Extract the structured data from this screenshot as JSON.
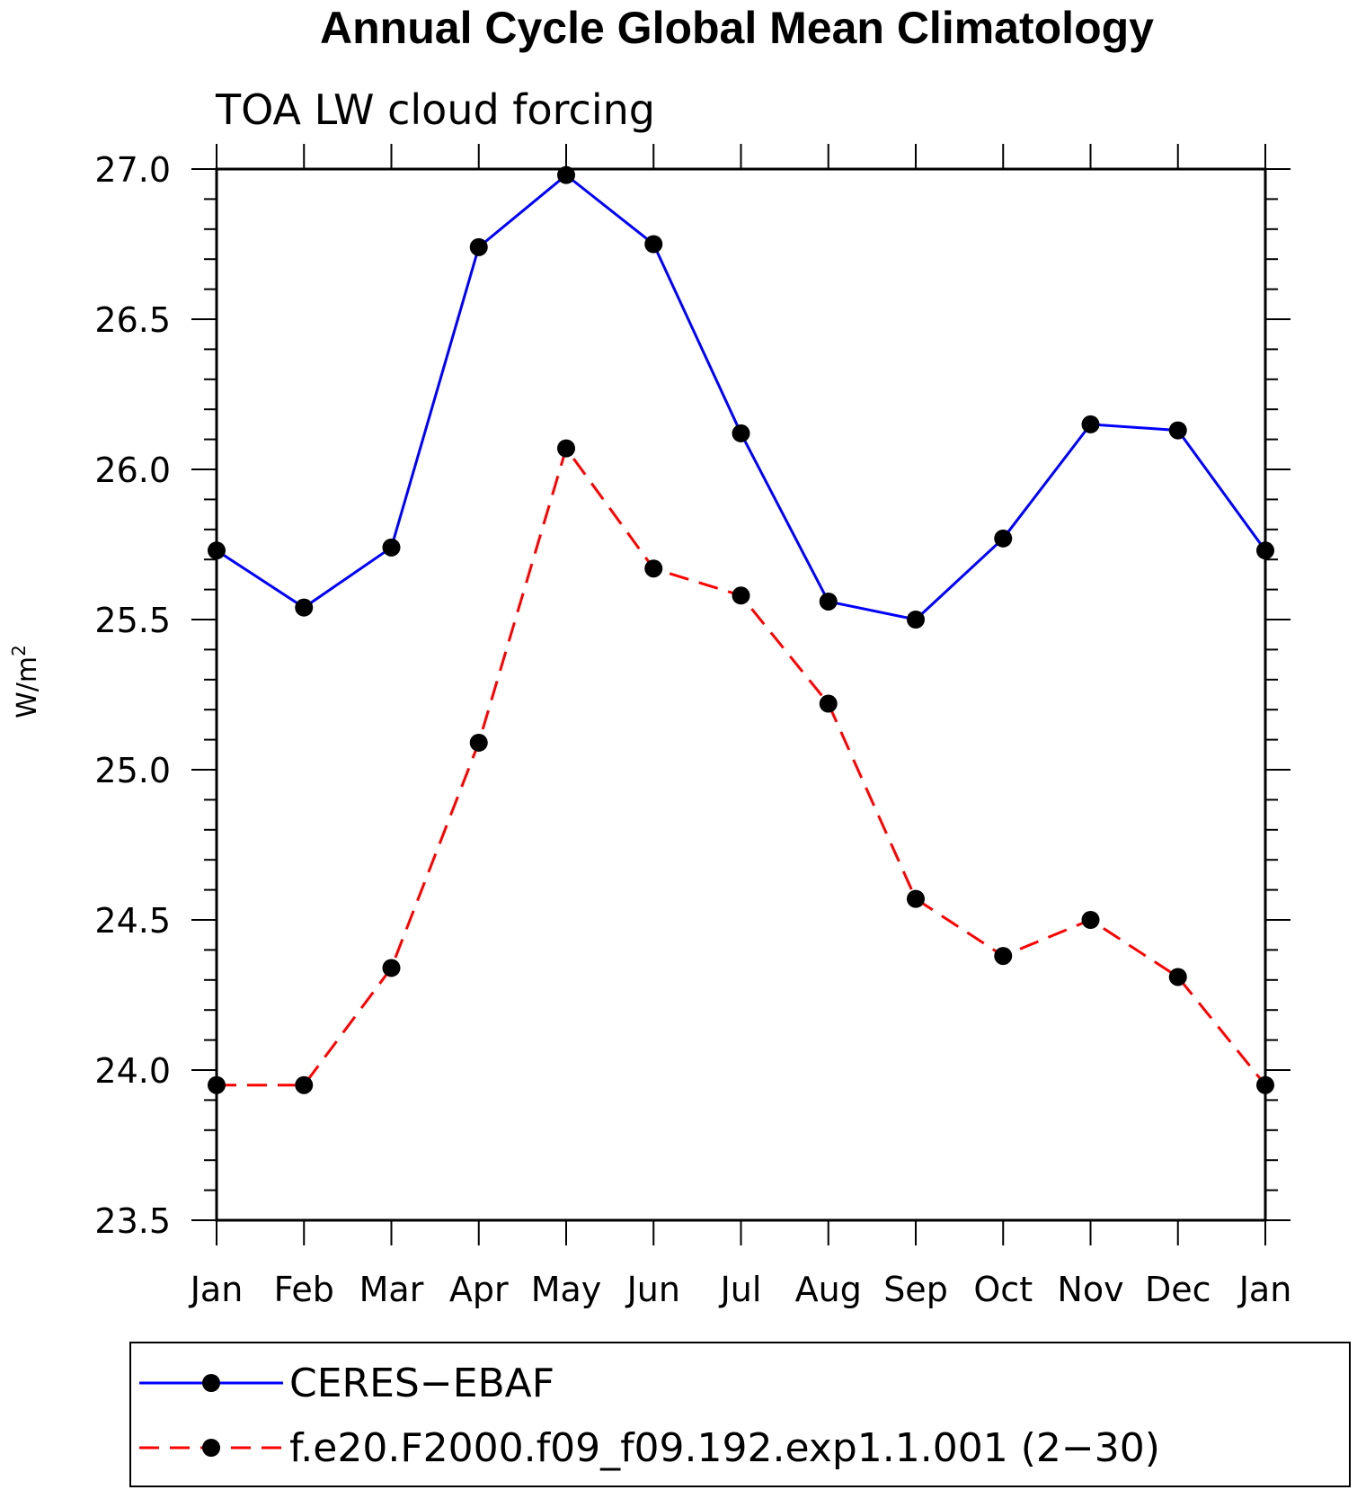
{
  "chart_data": {
    "type": "line",
    "title": "Annual Cycle Global Mean Climatology",
    "subtitle": "TOA LW cloud forcing",
    "ylabel": "W/m",
    "ylabel_superscript": "2",
    "ylim": [
      23.5,
      27.0
    ],
    "yticks": [
      "27.0",
      "26.5",
      "26.0",
      "25.5",
      "25.0",
      "24.5",
      "24.0",
      "23.5"
    ],
    "ytick_values": [
      27.0,
      26.5,
      26.0,
      25.5,
      25.0,
      24.5,
      24.0,
      23.5
    ],
    "categories": [
      "Jan",
      "Feb",
      "Mar",
      "Apr",
      "May",
      "Jun",
      "Jul",
      "Aug",
      "Sep",
      "Oct",
      "Nov",
      "Dec",
      "Jan"
    ],
    "series": [
      {
        "name": "CERES−EBAF",
        "color": "#0000ff",
        "dash": "solid",
        "values": [
          25.73,
          25.54,
          25.74,
          26.74,
          26.98,
          26.75,
          26.12,
          25.56,
          25.5,
          25.77,
          26.15,
          26.13,
          25.73
        ]
      },
      {
        "name": "f.e20.F2000.f09_f09.192.exp1.1.001 (2−30)",
        "color": "#ff0000",
        "dash": "dashed",
        "values": [
          23.95,
          23.95,
          24.34,
          25.09,
          26.07,
          25.67,
          25.58,
          25.22,
          24.57,
          24.38,
          24.5,
          24.31,
          23.95
        ]
      }
    ],
    "marker_color": "#000000",
    "legend_position": "bottom",
    "grid": false
  }
}
